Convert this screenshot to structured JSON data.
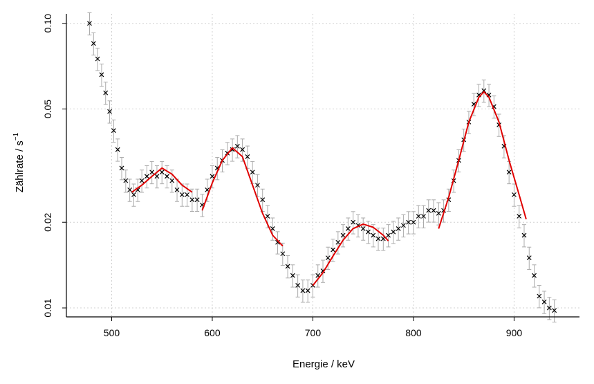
{
  "chart_data": {
    "type": "scatter",
    "title": "",
    "xlabel": "Energie / keV",
    "ylabel_main": "Zählrate / s",
    "ylabel_sup": "−1",
    "xlim": [
      455,
      965
    ],
    "ylim": [
      0.0093,
      0.108
    ],
    "y_scale": "log",
    "grid": true,
    "xticks": [
      500,
      600,
      700,
      800,
      900
    ],
    "xtick_labels": [
      "500",
      "600",
      "700",
      "800",
      "900"
    ],
    "yticks": [
      0.01,
      0.02,
      0.05,
      0.1
    ],
    "ytick_labels": [
      "0.01",
      "0.02",
      "0.05",
      "0.10"
    ],
    "marker": "x",
    "colors": {
      "points": "#000000",
      "error_bars": "#aaaaaa",
      "fit": "#e00000",
      "grid": "#d0d0d0"
    },
    "measurements": {
      "x": [
        478,
        482,
        486,
        490,
        494,
        498,
        502,
        506,
        510,
        514,
        518,
        522,
        526,
        530,
        535,
        540,
        545,
        550,
        555,
        560,
        565,
        570,
        575,
        580,
        585,
        590,
        595,
        600,
        605,
        610,
        615,
        620,
        625,
        630,
        635,
        640,
        645,
        650,
        655,
        660,
        665,
        670,
        675,
        680,
        685,
        690,
        695,
        700,
        705,
        710,
        715,
        720,
        725,
        730,
        735,
        740,
        745,
        750,
        755,
        760,
        765,
        770,
        775,
        780,
        785,
        790,
        795,
        800,
        805,
        810,
        815,
        820,
        825,
        830,
        835,
        840,
        845,
        850,
        855,
        860,
        865,
        870,
        875,
        880,
        885,
        890,
        895,
        900,
        905,
        910,
        915,
        920,
        925,
        930,
        935,
        940
      ],
      "y": [
        0.1,
        0.085,
        0.075,
        0.066,
        0.057,
        0.049,
        0.042,
        0.036,
        0.031,
        0.028,
        0.026,
        0.025,
        0.026,
        0.028,
        0.029,
        0.03,
        0.029,
        0.03,
        0.029,
        0.028,
        0.026,
        0.025,
        0.025,
        0.024,
        0.024,
        0.023,
        0.026,
        0.029,
        0.031,
        0.033,
        0.035,
        0.036,
        0.037,
        0.036,
        0.034,
        0.03,
        0.027,
        0.024,
        0.021,
        0.019,
        0.017,
        0.0155,
        0.014,
        0.013,
        0.012,
        0.0115,
        0.0115,
        0.012,
        0.013,
        0.0135,
        0.015,
        0.016,
        0.017,
        0.018,
        0.019,
        0.02,
        0.0195,
        0.019,
        0.0185,
        0.018,
        0.0175,
        0.0175,
        0.018,
        0.0185,
        0.019,
        0.0195,
        0.02,
        0.02,
        0.021,
        0.021,
        0.022,
        0.022,
        0.0215,
        0.022,
        0.024,
        0.028,
        0.033,
        0.039,
        0.045,
        0.052,
        0.056,
        0.058,
        0.056,
        0.051,
        0.044,
        0.037,
        0.03,
        0.025,
        0.021,
        0.018,
        0.015,
        0.013,
        0.011,
        0.0105,
        0.01,
        0.0098
      ],
      "relative_error": 0.09
    },
    "series": [
      {
        "type": "line",
        "x": [
          520,
          530,
          540,
          550,
          560,
          570,
          580
        ],
        "y": [
          0.0255,
          0.027,
          0.029,
          0.031,
          0.0295,
          0.027,
          0.0255
        ]
      },
      {
        "type": "line",
        "x": [
          590,
          600,
          610,
          620,
          630,
          640,
          650,
          660,
          670
        ],
        "y": [
          0.022,
          0.0275,
          0.033,
          0.0365,
          0.034,
          0.027,
          0.0215,
          0.018,
          0.0165
        ]
      },
      {
        "type": "line",
        "x": [
          700,
          710,
          720,
          730,
          740,
          750,
          760,
          770,
          775
        ],
        "y": [
          0.012,
          0.0133,
          0.0152,
          0.0173,
          0.019,
          0.0197,
          0.0192,
          0.018,
          0.0172
        ]
      },
      {
        "type": "line",
        "x": [
          825,
          835,
          845,
          855,
          865,
          870,
          875,
          885,
          895,
          905,
          912
        ],
        "y": [
          0.019,
          0.0245,
          0.033,
          0.045,
          0.055,
          0.0575,
          0.055,
          0.045,
          0.033,
          0.025,
          0.0205
        ]
      }
    ]
  }
}
